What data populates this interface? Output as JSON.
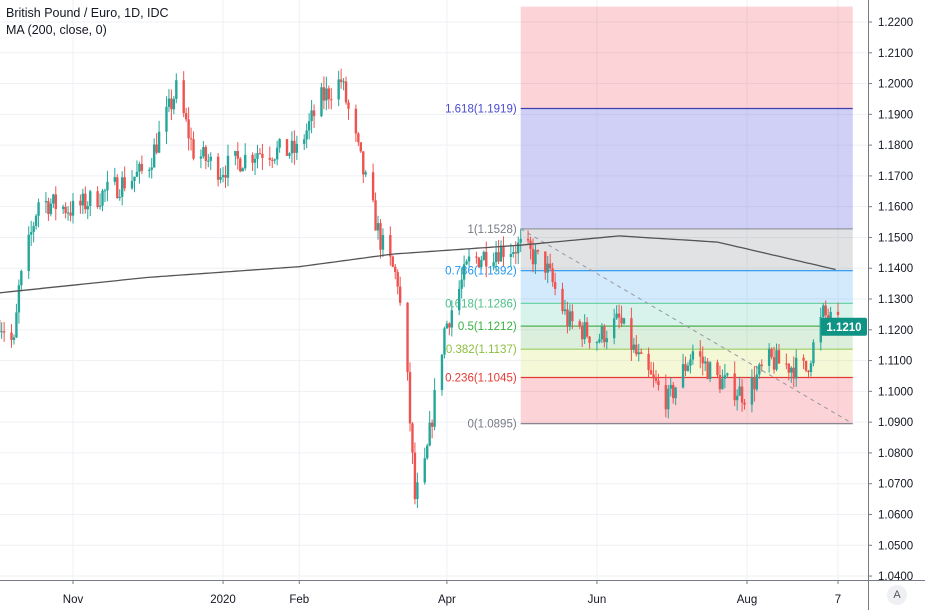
{
  "chart_data": {
    "type": "candlestick",
    "title": "British Pound / Euro, 1D, IDC",
    "indicator": "MA (200, close, 0)",
    "ylim": [
      1.04,
      1.225
    ],
    "y_ticks": [
      "1.2200",
      "1.2100",
      "1.2000",
      "1.1900",
      "1.1800",
      "1.1700",
      "1.1600",
      "1.1500",
      "1.1400",
      "1.1300",
      "1.1200",
      "1.1100",
      "1.1000",
      "1.0900",
      "1.0800",
      "1.0700",
      "1.0600",
      "1.0500",
      "1.0400"
    ],
    "x_ticks": [
      {
        "label": "Nov",
        "date": "2019-11-01"
      },
      {
        "label": "2020",
        "date": "2020-01-01"
      },
      {
        "label": "Feb",
        "date": "2020-02-01"
      },
      {
        "label": "Apr",
        "date": "2020-04-01"
      },
      {
        "label": "Jun",
        "date": "2020-06-01"
      },
      {
        "label": "Aug",
        "date": "2020-08-01"
      },
      {
        "label": "7",
        "date": "2020-09-07"
      }
    ],
    "xlim": [
      "2019-10-02",
      "2020-09-25"
    ],
    "last_price": "1.1210",
    "colors": {
      "up": "#26a69a",
      "down": "#ef5350",
      "ma": "#555555",
      "last": "#0e9384"
    },
    "close_path": [
      [
        "2019-10-02",
        1.1232
      ],
      [
        "2019-10-08",
        1.115
      ],
      [
        "2019-10-10",
        1.133
      ],
      [
        "2019-10-18",
        1.162
      ],
      [
        "2019-11-01",
        1.159
      ],
      [
        "2019-11-15",
        1.165
      ],
      [
        "2019-12-01",
        1.172
      ],
      [
        "2019-12-13",
        1.198
      ],
      [
        "2019-12-20",
        1.178
      ],
      [
        "2019-12-31",
        1.172
      ],
      [
        "2020-01-15",
        1.178
      ],
      [
        "2020-01-31",
        1.178
      ],
      [
        "2020-02-10",
        1.195
      ],
      [
        "2020-02-18",
        1.201
      ],
      [
        "2020-02-28",
        1.168
      ],
      [
        "2020-03-05",
        1.149
      ],
      [
        "2020-03-12",
        1.136
      ],
      [
        "2020-03-16",
        1.103
      ],
      [
        "2020-03-19",
        1.065
      ],
      [
        "2020-03-23",
        1.075
      ],
      [
        "2020-03-31",
        1.12
      ],
      [
        "2020-04-10",
        1.142
      ],
      [
        "2020-04-21",
        1.146
      ],
      [
        "2020-05-01",
        1.147
      ],
      [
        "2020-05-11",
        1.141
      ],
      [
        "2020-05-20",
        1.123
      ],
      [
        "2020-06-01",
        1.117
      ],
      [
        "2020-06-10",
        1.123
      ],
      [
        "2020-06-20",
        1.107
      ],
      [
        "2020-06-30",
        1.097
      ],
      [
        "2020-07-10",
        1.113
      ],
      [
        "2020-07-20",
        1.104
      ],
      [
        "2020-07-31",
        1.099
      ],
      [
        "2020-08-10",
        1.11
      ],
      [
        "2020-08-25",
        1.107
      ],
      [
        "2020-09-01",
        1.125
      ],
      [
        "2020-09-07",
        1.121
      ]
    ],
    "ma_path": [
      [
        "2019-10-02",
        1.132
      ],
      [
        "2019-12-01",
        1.137
      ],
      [
        "2020-02-01",
        1.1405
      ],
      [
        "2020-03-10",
        1.1446
      ],
      [
        "2020-05-01",
        1.1475
      ],
      [
        "2020-06-10",
        1.1505
      ],
      [
        "2020-07-20",
        1.1485
      ],
      [
        "2020-09-07",
        1.1394
      ]
    ],
    "fib": {
      "start_date": "2020-05-01",
      "end_date": "2020-09-13",
      "top_price": 1.225,
      "levels": [
        {
          "label": "1.618(1.1919)",
          "price": 1.1919,
          "line": "#3f3fb0",
          "text": "#4a4ad0",
          "fill": "rgba(242,54,69,0.22)"
        },
        {
          "label": "1(1.1528)",
          "price": 1.1528,
          "line": "#9598a1",
          "text": "#787b86",
          "fill": "rgba(98,98,230,0.30)"
        },
        {
          "label": "0.786(1.1392)",
          "price": 1.1392,
          "line": "#2196f3",
          "text": "#2196f3",
          "fill": "rgba(120,123,134,0.22)"
        },
        {
          "label": "0.618(1.1286)",
          "price": 1.1286,
          "line": "#5fcf9a",
          "text": "#4cbf85",
          "fill": "rgba(33,150,243,0.20)"
        },
        {
          "label": "0.5(1.1212)",
          "price": 1.1212,
          "line": "#4caf50",
          "text": "#3cb043",
          "fill": "rgba(8,180,130,0.16)"
        },
        {
          "label": "0.382(1.1137)",
          "price": 1.1137,
          "line": "#9ccc65",
          "text": "#8cbf3f",
          "fill": "rgba(76,175,80,0.20)"
        },
        {
          "label": "0.236(1.1045)",
          "price": 1.1045,
          "line": "#e53935",
          "text": "#e53935",
          "fill": "rgba(205,220,57,0.20)"
        },
        {
          "label": "0(1.0895)",
          "price": 1.0895,
          "line": "#787b86",
          "text": "#787b86",
          "fill": "rgba(242,54,69,0.22)"
        }
      ],
      "trend_line": [
        [
          "2020-05-01",
          1.1528
        ],
        [
          "2020-09-13",
          1.0895
        ]
      ]
    }
  },
  "ui": {
    "auto_scale": "A"
  }
}
